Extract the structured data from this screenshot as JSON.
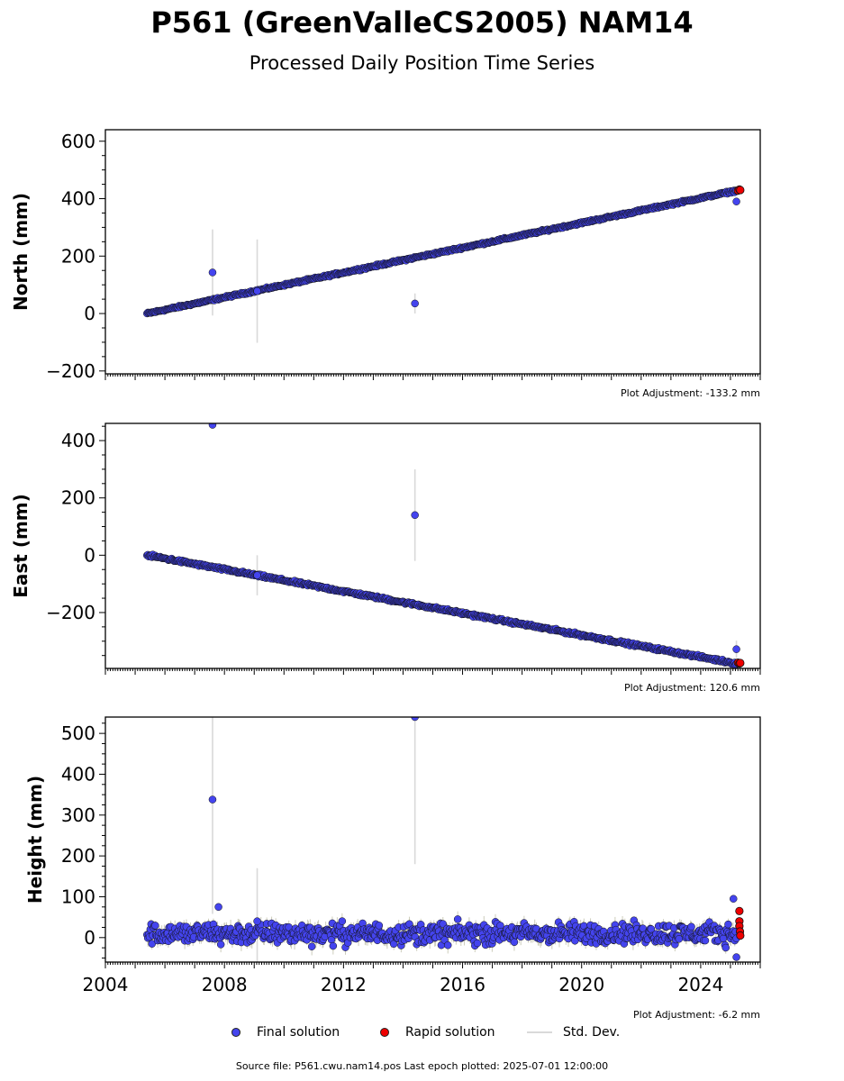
{
  "title": "P561 (GreenValleCS2005) NAM14",
  "subtitle": "Processed Daily Position Time Series",
  "source_line": "Source file: P561.cwu.nam14.pos  Last epoch plotted: 2025-07-01 12:00:00",
  "legend": {
    "final": "Final solution",
    "rapid": "Rapid solution",
    "std": "Std. Dev."
  },
  "colors": {
    "final": "#4444ee",
    "rapid": "#ee0000",
    "std": "#d9d9d9",
    "marker_edge": "#111111"
  },
  "chart_data": [
    {
      "type": "scatter",
      "ylabel": "North (mm)",
      "adjustment": "Plot Adjustment: -133.2 mm",
      "xlim": [
        2004,
        2026
      ],
      "ylim": [
        -210,
        640
      ],
      "yticks": [
        -200,
        0,
        200,
        400,
        600
      ],
      "trend": {
        "x_start": 2005.4,
        "y_start": 0,
        "x_end": 2025.2,
        "y_end": 428
      },
      "noise": 3,
      "outliers": [
        {
          "x": 2007.6,
          "y": 143,
          "err": 150
        },
        {
          "x": 2009.1,
          "y": 78,
          "err": 180
        },
        {
          "x": 2014.4,
          "y": 35,
          "err": 35
        },
        {
          "x": 2025.2,
          "y": 390,
          "err": 0
        }
      ],
      "rapid": [
        {
          "x": 2025.25,
          "y": 428
        },
        {
          "x": 2025.3,
          "y": 432
        },
        {
          "x": 2025.33,
          "y": 430
        }
      ]
    },
    {
      "type": "scatter",
      "ylabel": "East (mm)",
      "adjustment": "Plot Adjustment: 120.6 mm",
      "xlim": [
        2004,
        2026
      ],
      "ylim": [
        -395,
        460
      ],
      "yticks": [
        -200,
        0,
        200,
        400
      ],
      "trend": {
        "x_start": 2005.4,
        "y_start": 0,
        "x_end": 2025.2,
        "y_end": -378
      },
      "noise": 4,
      "outliers": [
        {
          "x": 2007.6,
          "y": 455,
          "err": 0
        },
        {
          "x": 2009.1,
          "y": -70,
          "err": 70
        },
        {
          "x": 2014.4,
          "y": 140,
          "err": 160
        },
        {
          "x": 2025.2,
          "y": -328,
          "err": 30
        }
      ],
      "rapid": [
        {
          "x": 2025.25,
          "y": -375
        },
        {
          "x": 2025.3,
          "y": -378
        },
        {
          "x": 2025.33,
          "y": -376
        }
      ]
    },
    {
      "type": "scatter",
      "ylabel": "Height (mm)",
      "adjustment": "Plot Adjustment: -6.2 mm",
      "xlim": [
        2004,
        2026
      ],
      "ylim": [
        -60,
        540
      ],
      "yticks": [
        0,
        100,
        200,
        300,
        400,
        500
      ],
      "xticks": [
        2004,
        2008,
        2012,
        2016,
        2020,
        2024
      ],
      "trend": {
        "x_start": 2005.4,
        "y_start": 10,
        "x_end": 2025.2,
        "y_end": 10
      },
      "noise": 22,
      "outliers": [
        {
          "x": 2007.6,
          "y": 338,
          "err": 280
        },
        {
          "x": 2007.8,
          "y": 75,
          "err": 0
        },
        {
          "x": 2009.1,
          "y": 40,
          "err": 130
        },
        {
          "x": 2014.4,
          "y": 540,
          "err": 360
        },
        {
          "x": 2025.1,
          "y": 95,
          "err": 0
        },
        {
          "x": 2025.2,
          "y": -48,
          "err": 0
        }
      ],
      "rapid": [
        {
          "x": 2025.3,
          "y": 65
        },
        {
          "x": 2025.3,
          "y": 40
        },
        {
          "x": 2025.3,
          "y": 28
        },
        {
          "x": 2025.32,
          "y": 15
        },
        {
          "x": 2025.33,
          "y": 5
        }
      ]
    }
  ]
}
